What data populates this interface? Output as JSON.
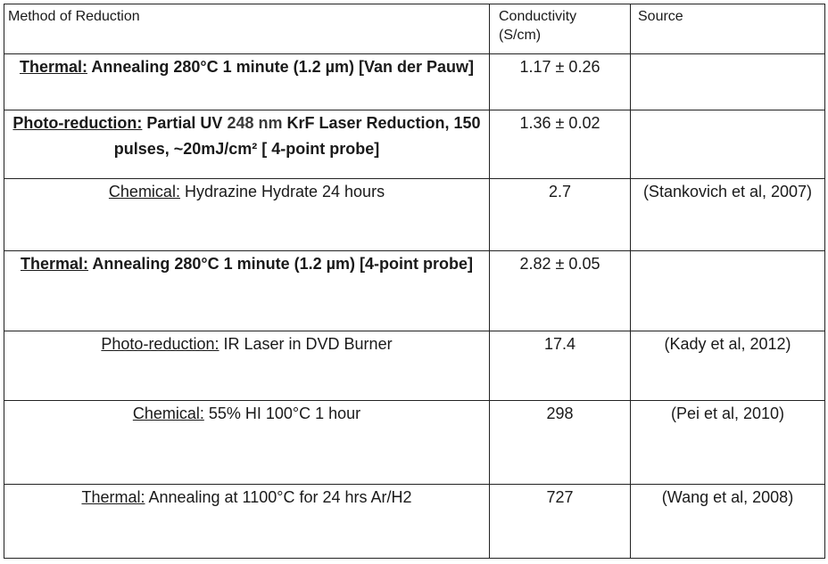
{
  "table": {
    "headers": {
      "method": "Method of Reduction",
      "conductivity_line1": "Conductivity",
      "conductivity_line2": "(S/cm)",
      "source": "Source"
    },
    "rows": [
      {
        "category": "Thermal:",
        "desc_before": " Annealing 280°C 1 minute (1.2 µm) [Van der Pauw]",
        "desc_accent": "",
        "desc_after": "",
        "conductivity": "1.17 ± 0.26",
        "source": ""
      },
      {
        "category": "Photo-reduction:",
        "desc_before": " Partial UV ",
        "desc_accent": "248 nm",
        "desc_after": " KrF Laser Reduction, 150 pulses, ~20mJ/cm² [ 4-point probe]",
        "conductivity": "1.36 ± 0.02",
        "source": ""
      },
      {
        "category": "Chemical:",
        "desc_before": " Hydrazine Hydrate 24 hours",
        "desc_accent": "",
        "desc_after": "",
        "conductivity": "2.7",
        "source": "(Stankovich et al, 2007)"
      },
      {
        "category": "Thermal:",
        "desc_before": " Annealing 280°C 1 minute (1.2 µm) [4-point probe]",
        "desc_accent": "",
        "desc_after": "",
        "conductivity": "2.82 ± 0.05",
        "source": ""
      },
      {
        "category": "Photo-reduction:",
        "desc_before": " IR Laser in DVD Burner",
        "desc_accent": "",
        "desc_after": "",
        "conductivity": "17.4",
        "source": "(Kady et al, 2012)"
      },
      {
        "category": "Chemical:",
        "desc_before": " 55% HI 100°C 1 hour",
        "desc_accent": "",
        "desc_after": "",
        "conductivity": "298",
        "source": "(Pei et al, 2010)"
      },
      {
        "category": "Thermal:",
        "desc_before": " Annealing at 1100°C for 24 hrs Ar/H2",
        "desc_accent": "",
        "desc_after": "",
        "conductivity": "727",
        "source": "(Wang et al, 2008)"
      }
    ]
  },
  "colors": {
    "border": "#222222",
    "text": "#1a1a1a",
    "wavelength_text": "#3a3a3a"
  }
}
